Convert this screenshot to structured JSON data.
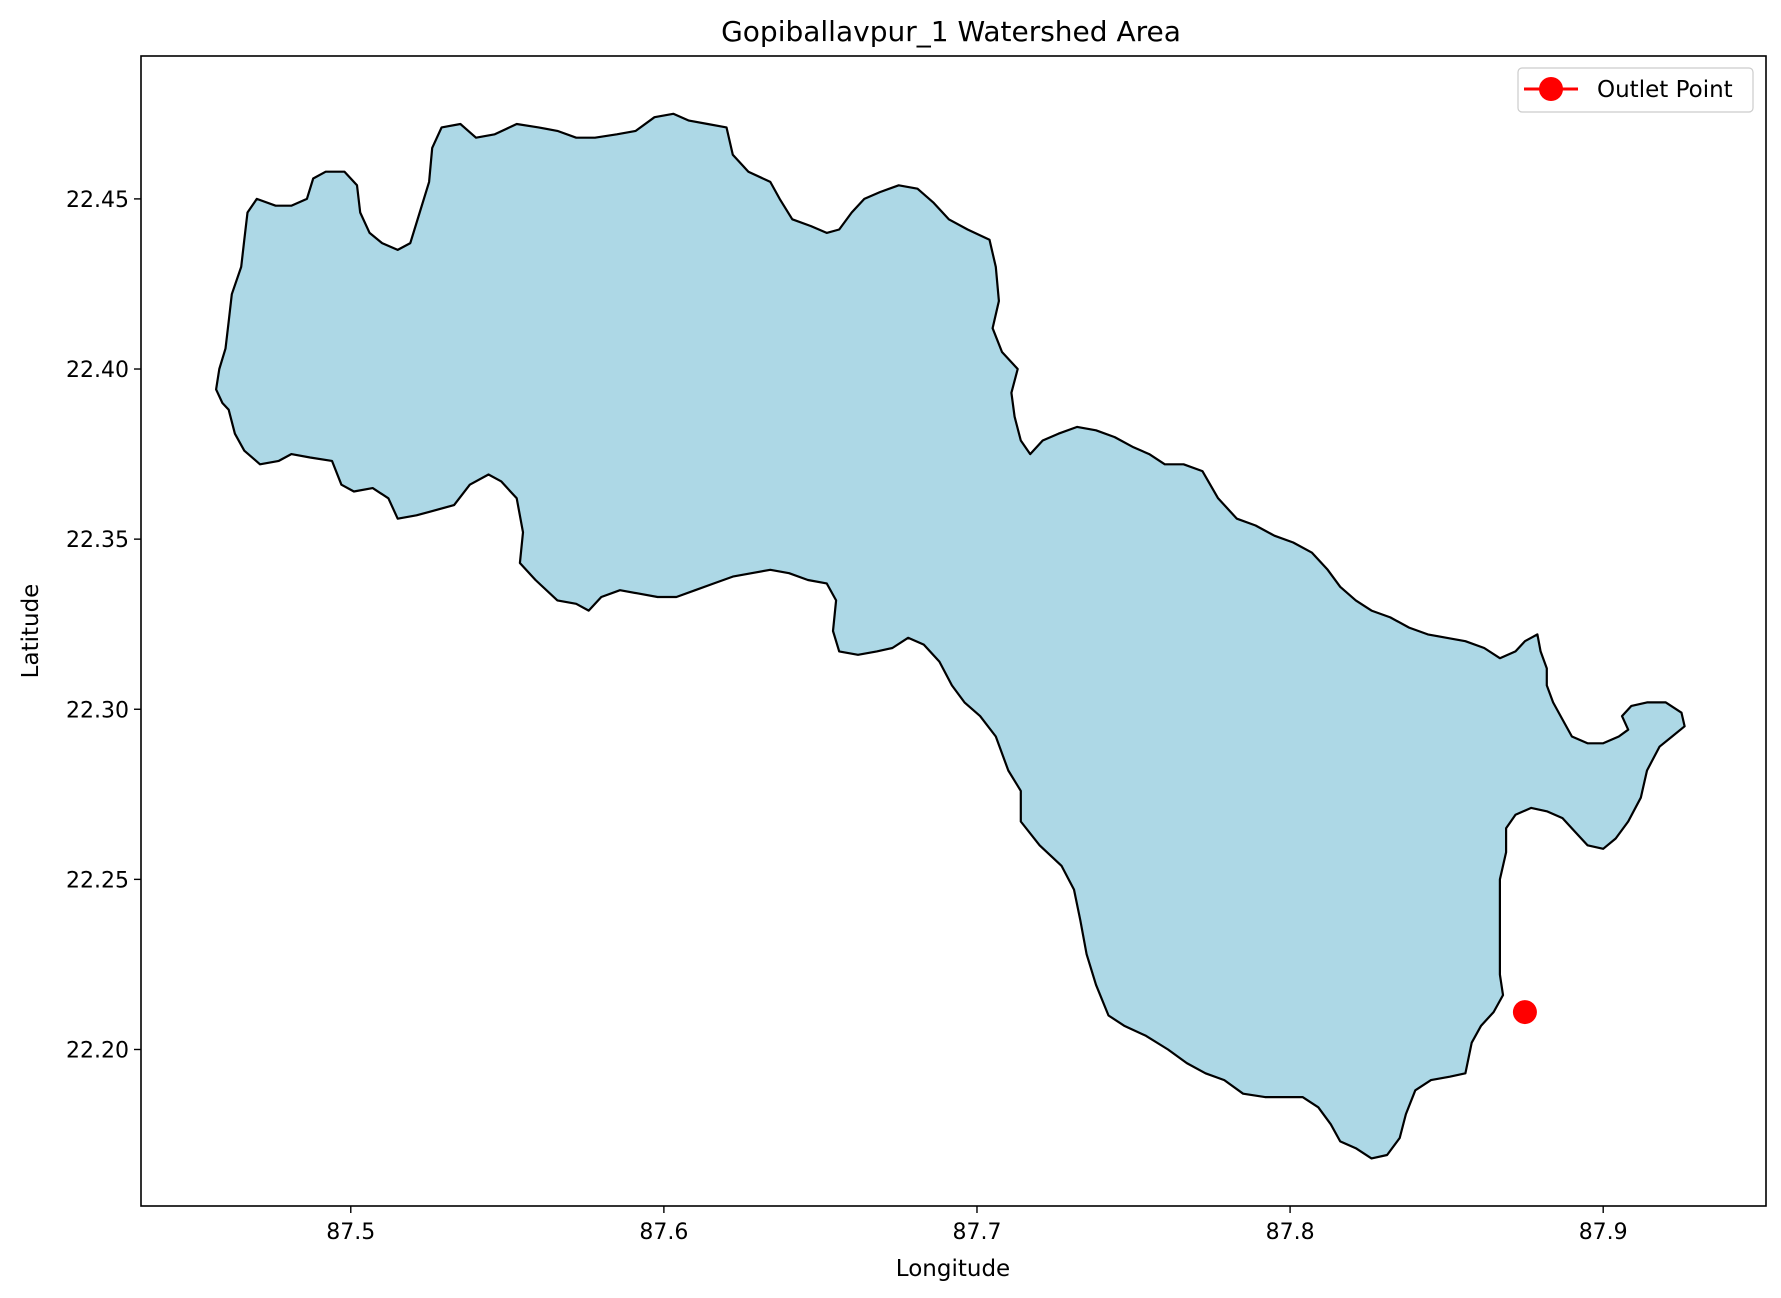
{
  "chart_data": {
    "type": "map",
    "title": "Gopiballavpur_1 Watershed Area",
    "xlabel": "Longitude",
    "ylabel": "Latitude",
    "xlim": [
      87.433,
      87.952
    ],
    "ylim": [
      22.154,
      22.492
    ],
    "x_ticks": [
      "87.5",
      "87.6",
      "87.7",
      "87.8",
      "87.9"
    ],
    "x_tick_values": [
      87.5,
      87.6,
      87.7,
      87.8,
      87.9
    ],
    "y_ticks": [
      "22.20",
      "22.25",
      "22.30",
      "22.35",
      "22.40",
      "22.45"
    ],
    "y_tick_values": [
      22.2,
      22.25,
      22.3,
      22.35,
      22.4,
      22.45
    ],
    "grid": false,
    "legend": {
      "placement": "top-right",
      "entries": [
        "Outlet Point"
      ]
    },
    "colors": {
      "watershed_fill": "#add8e6",
      "boundary": "#000000",
      "outlet": "#ff0000"
    },
    "outlet_point": {
      "name": "Outlet Point",
      "lon": 87.875,
      "lat": 22.211
    },
    "boundary": [
      [
        87.461,
        22.388
      ],
      [
        87.463,
        22.381
      ],
      [
        87.466,
        22.376
      ],
      [
        87.471,
        22.372
      ],
      [
        87.477,
        22.373
      ],
      [
        87.481,
        22.375
      ],
      [
        87.487,
        22.374
      ],
      [
        87.494,
        22.373
      ],
      [
        87.497,
        22.366
      ],
      [
        87.501,
        22.364
      ],
      [
        87.507,
        22.365
      ],
      [
        87.512,
        22.362
      ],
      [
        87.515,
        22.356
      ],
      [
        87.521,
        22.357
      ],
      [
        87.525,
        22.358
      ],
      [
        87.533,
        22.36
      ],
      [
        87.538,
        22.366
      ],
      [
        87.544,
        22.369
      ],
      [
        87.548,
        22.367
      ],
      [
        87.553,
        22.362
      ],
      [
        87.555,
        22.352
      ],
      [
        87.554,
        22.343
      ],
      [
        87.559,
        22.338
      ],
      [
        87.566,
        22.332
      ],
      [
        87.572,
        22.331
      ],
      [
        87.576,
        22.329
      ],
      [
        87.58,
        22.333
      ],
      [
        87.586,
        22.335
      ],
      [
        87.592,
        22.334
      ],
      [
        87.598,
        22.333
      ],
      [
        87.604,
        22.333
      ],
      [
        87.61,
        22.335
      ],
      [
        87.616,
        22.337
      ],
      [
        87.622,
        22.339
      ],
      [
        87.628,
        22.34
      ],
      [
        87.634,
        22.341
      ],
      [
        87.64,
        22.34
      ],
      [
        87.646,
        22.338
      ],
      [
        87.652,
        22.337
      ],
      [
        87.655,
        22.332
      ],
      [
        87.654,
        22.323
      ],
      [
        87.656,
        22.317
      ],
      [
        87.662,
        22.316
      ],
      [
        87.668,
        22.317
      ],
      [
        87.673,
        22.318
      ],
      [
        87.678,
        22.321
      ],
      [
        87.683,
        22.319
      ],
      [
        87.688,
        22.314
      ],
      [
        87.692,
        22.307
      ],
      [
        87.696,
        22.302
      ],
      [
        87.701,
        22.298
      ],
      [
        87.706,
        22.292
      ],
      [
        87.71,
        22.282
      ],
      [
        87.714,
        22.276
      ],
      [
        87.714,
        22.267
      ],
      [
        87.72,
        22.26
      ],
      [
        87.727,
        22.254
      ],
      [
        87.731,
        22.247
      ],
      [
        87.733,
        22.238
      ],
      [
        87.735,
        22.228
      ],
      [
        87.738,
        22.219
      ],
      [
        87.742,
        22.21
      ],
      [
        87.747,
        22.207
      ],
      [
        87.754,
        22.204
      ],
      [
        87.761,
        22.2
      ],
      [
        87.767,
        22.196
      ],
      [
        87.773,
        22.193
      ],
      [
        87.779,
        22.191
      ],
      [
        87.785,
        22.187
      ],
      [
        87.792,
        22.186
      ],
      [
        87.798,
        22.186
      ],
      [
        87.804,
        22.186
      ],
      [
        87.809,
        22.183
      ],
      [
        87.813,
        22.178
      ],
      [
        87.816,
        22.173
      ],
      [
        87.821,
        22.171
      ],
      [
        87.826,
        22.168
      ],
      [
        87.831,
        22.169
      ],
      [
        87.835,
        22.174
      ],
      [
        87.837,
        22.181
      ],
      [
        87.84,
        22.188
      ],
      [
        87.845,
        22.191
      ],
      [
        87.851,
        22.192
      ],
      [
        87.856,
        22.193
      ],
      [
        87.858,
        22.202
      ],
      [
        87.861,
        22.207
      ],
      [
        87.865,
        22.211
      ],
      [
        87.868,
        22.216
      ],
      [
        87.867,
        22.222
      ],
      [
        87.867,
        22.231
      ],
      [
        87.867,
        22.24
      ],
      [
        87.867,
        22.25
      ],
      [
        87.869,
        22.258
      ],
      [
        87.869,
        22.265
      ],
      [
        87.872,
        22.269
      ],
      [
        87.877,
        22.271
      ],
      [
        87.882,
        22.27
      ],
      [
        87.887,
        22.268
      ],
      [
        87.891,
        22.264
      ],
      [
        87.895,
        22.26
      ],
      [
        87.9,
        22.259
      ],
      [
        87.904,
        22.262
      ],
      [
        87.908,
        22.267
      ],
      [
        87.912,
        22.274
      ],
      [
        87.914,
        22.282
      ],
      [
        87.918,
        22.289
      ],
      [
        87.922,
        22.292
      ],
      [
        87.926,
        22.295
      ],
      [
        87.925,
        22.299
      ],
      [
        87.92,
        22.302
      ],
      [
        87.914,
        22.302
      ],
      [
        87.909,
        22.301
      ],
      [
        87.906,
        22.298
      ],
      [
        87.908,
        22.294
      ],
      [
        87.905,
        22.292
      ],
      [
        87.9,
        22.29
      ],
      [
        87.895,
        22.29
      ],
      [
        87.89,
        22.292
      ],
      [
        87.887,
        22.297
      ],
      [
        87.884,
        22.302
      ],
      [
        87.882,
        22.307
      ],
      [
        87.882,
        22.312
      ],
      [
        87.88,
        22.317
      ],
      [
        87.879,
        22.322
      ],
      [
        87.875,
        22.32
      ],
      [
        87.872,
        22.317
      ],
      [
        87.867,
        22.315
      ],
      [
        87.862,
        22.318
      ],
      [
        87.856,
        22.32
      ],
      [
        87.85,
        22.321
      ],
      [
        87.844,
        22.322
      ],
      [
        87.838,
        22.324
      ],
      [
        87.832,
        22.327
      ],
      [
        87.826,
        22.329
      ],
      [
        87.821,
        22.332
      ],
      [
        87.816,
        22.336
      ],
      [
        87.812,
        22.341
      ],
      [
        87.807,
        22.346
      ],
      [
        87.801,
        22.349
      ],
      [
        87.795,
        22.351
      ],
      [
        87.789,
        22.354
      ],
      [
        87.783,
        22.356
      ],
      [
        87.777,
        22.362
      ],
      [
        87.772,
        22.37
      ],
      [
        87.766,
        22.372
      ],
      [
        87.76,
        22.372
      ],
      [
        87.755,
        22.375
      ],
      [
        87.75,
        22.377
      ],
      [
        87.744,
        22.38
      ],
      [
        87.738,
        22.382
      ],
      [
        87.732,
        22.383
      ],
      [
        87.726,
        22.381
      ],
      [
        87.721,
        22.379
      ],
      [
        87.717,
        22.375
      ],
      [
        87.714,
        22.379
      ],
      [
        87.712,
        22.386
      ],
      [
        87.711,
        22.393
      ],
      [
        87.713,
        22.4
      ],
      [
        87.708,
        22.405
      ],
      [
        87.705,
        22.412
      ],
      [
        87.707,
        22.42
      ],
      [
        87.706,
        22.43
      ],
      [
        87.704,
        22.438
      ],
      [
        87.697,
        22.441
      ],
      [
        87.691,
        22.444
      ],
      [
        87.686,
        22.449
      ],
      [
        87.681,
        22.453
      ],
      [
        87.675,
        22.454
      ],
      [
        87.669,
        22.452
      ],
      [
        87.664,
        22.45
      ],
      [
        87.66,
        22.446
      ],
      [
        87.656,
        22.441
      ],
      [
        87.652,
        22.44
      ],
      [
        87.647,
        22.442
      ],
      [
        87.641,
        22.444
      ],
      [
        87.637,
        22.45
      ],
      [
        87.634,
        22.455
      ],
      [
        87.627,
        22.458
      ],
      [
        87.622,
        22.463
      ],
      [
        87.62,
        22.471
      ],
      [
        87.614,
        22.472
      ],
      [
        87.608,
        22.473
      ],
      [
        87.603,
        22.475
      ],
      [
        87.597,
        22.474
      ],
      [
        87.591,
        22.47
      ],
      [
        87.585,
        22.469
      ],
      [
        87.578,
        22.468
      ],
      [
        87.572,
        22.468
      ],
      [
        87.566,
        22.47
      ],
      [
        87.56,
        22.471
      ],
      [
        87.553,
        22.472
      ],
      [
        87.546,
        22.469
      ],
      [
        87.54,
        22.468
      ],
      [
        87.535,
        22.472
      ],
      [
        87.529,
        22.471
      ],
      [
        87.526,
        22.465
      ],
      [
        87.525,
        22.455
      ],
      [
        87.522,
        22.446
      ],
      [
        87.519,
        22.437
      ],
      [
        87.515,
        22.435
      ],
      [
        87.51,
        22.437
      ],
      [
        87.506,
        22.44
      ],
      [
        87.503,
        22.446
      ],
      [
        87.502,
        22.454
      ],
      [
        87.498,
        22.458
      ],
      [
        87.492,
        22.458
      ],
      [
        87.488,
        22.456
      ],
      [
        87.486,
        22.45
      ],
      [
        87.481,
        22.448
      ],
      [
        87.476,
        22.448
      ],
      [
        87.47,
        22.45
      ],
      [
        87.467,
        22.446
      ],
      [
        87.466,
        22.438
      ],
      [
        87.465,
        22.43
      ],
      [
        87.462,
        22.422
      ],
      [
        87.461,
        22.414
      ],
      [
        87.46,
        22.406
      ],
      [
        87.458,
        22.4
      ],
      [
        87.457,
        22.394
      ],
      [
        87.459,
        22.39
      ]
    ]
  }
}
